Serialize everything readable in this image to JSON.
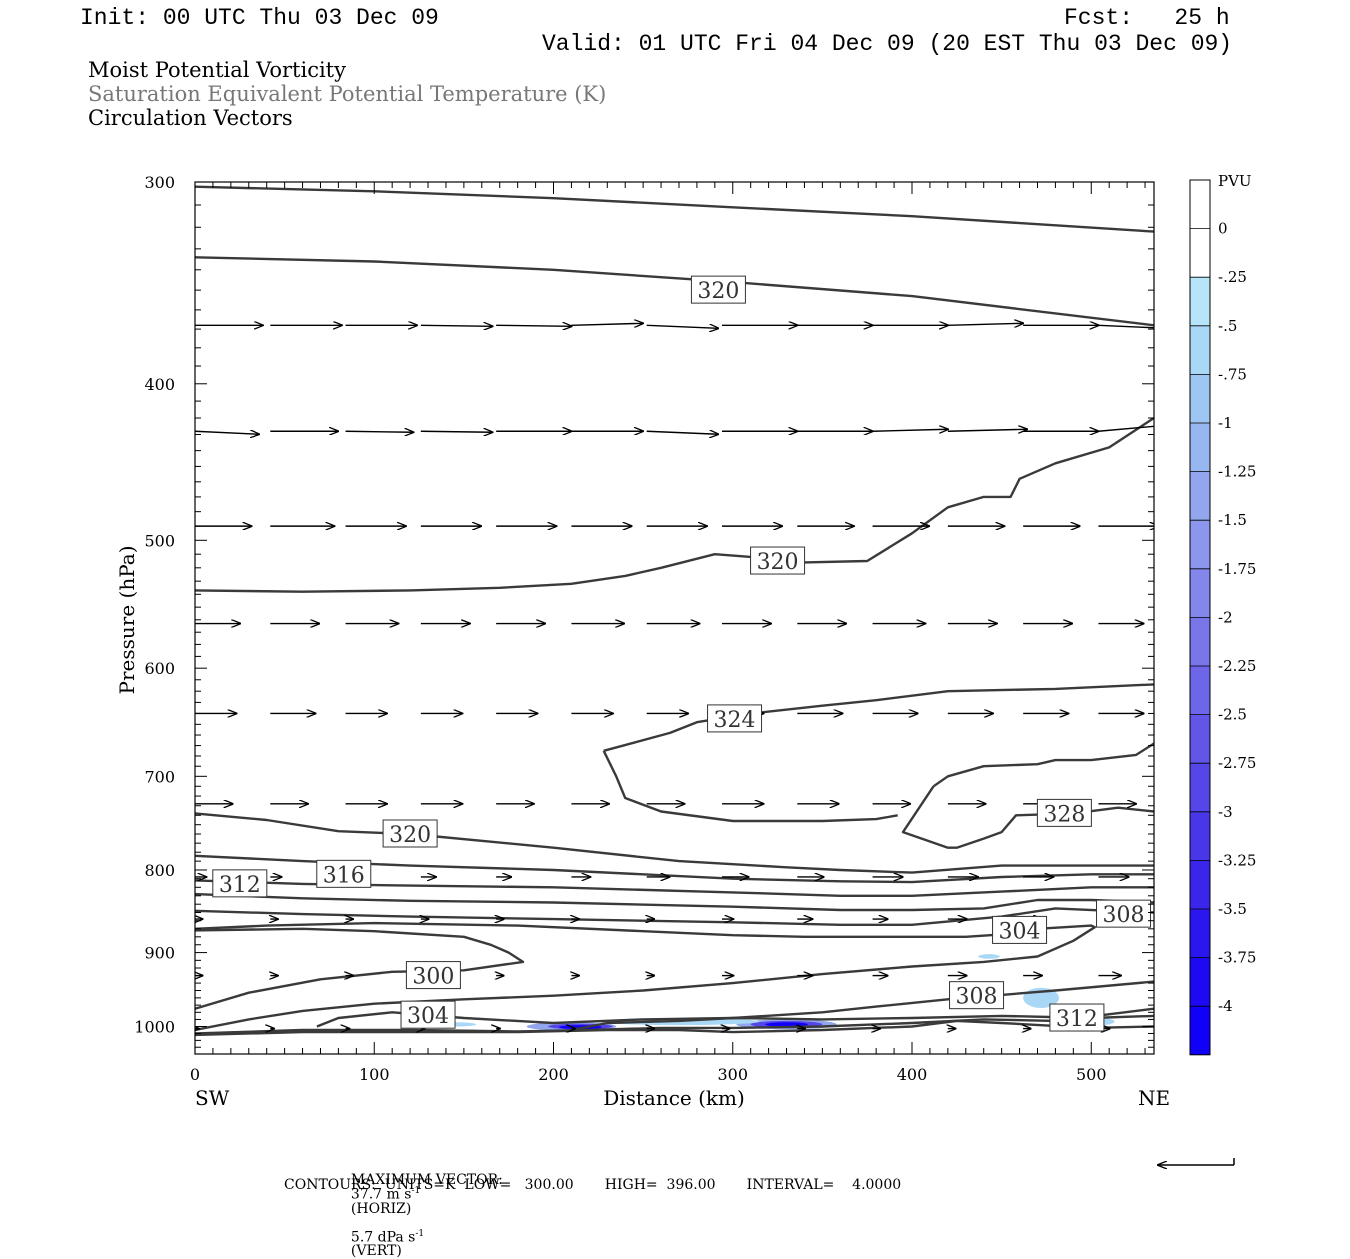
{
  "header": {
    "init": "Init: 00 UTC Thu 03 Dec 09",
    "fcst": "Fcst:   25 h",
    "valid": "Valid: 01 UTC Fri 04 Dec 09 (20 EST Thu 03 Dec 09)"
  },
  "titles": {
    "line1": "Moist Potential Vorticity",
    "line2": "Saturation Equivalent Potential Temperature (K)",
    "line3": "Circulation Vectors"
  },
  "footer": {
    "max_vector_label": "MAXIMUM VECTOR:",
    "horiz_value": "37.7 m s",
    "horiz_exp": "-1",
    "horiz_suffix": "(HORIZ)",
    "vert_value": "5.7 dPa s",
    "vert_exp": "-1",
    "vert_suffix": "(VERT)",
    "contours_line": "CONTOURS:  UNITS=K  LOW=   300.00       HIGH=  396.00       INTERVAL=    4.0000"
  },
  "chart_data": {
    "type": "cross-section",
    "xlabel": "Distance (km)",
    "ylabel": "Pressure (hPa)",
    "xlim": [
      0,
      535
    ],
    "ylim": [
      1040,
      300
    ],
    "y_scale": "log-pressure",
    "x_ticks": [
      "0",
      "100",
      "200",
      "300",
      "400",
      "500"
    ],
    "y_ticks": [
      "300",
      "400",
      "500",
      "600",
      "700",
      "800",
      "900",
      "1000"
    ],
    "endpoint_left": "SW",
    "endpoint_right": "NE",
    "colorbar": {
      "unit": "PVU",
      "labels": [
        "0",
        "-.25",
        "-.5",
        "-.75",
        "-1",
        "-1.25",
        "-1.5",
        "-1.75",
        "-2",
        "-2.25",
        "-2.5",
        "-2.75",
        "-3",
        "-3.25",
        "-3.5",
        "-3.75",
        "-4"
      ],
      "colors": [
        "#ffffff",
        "#ffffff",
        "#b8e4fa",
        "#a9d8f7",
        "#9ec6f3",
        "#98b6f0",
        "#92a6ee",
        "#8b96ec",
        "#8386ea",
        "#7a76e9",
        "#6e66e8",
        "#6256e8",
        "#5546e8",
        "#4836e8",
        "#3a26ea",
        "#2c16ee",
        "#1e0af2",
        "#1000f8"
      ]
    },
    "contour_labels": [
      {
        "text": "320",
        "x": 292,
        "p": 350
      },
      {
        "text": "320",
        "x": 325,
        "p": 515
      },
      {
        "text": "324",
        "x": 301,
        "p": 645
      },
      {
        "text": "328",
        "x": 485,
        "p": 738
      },
      {
        "text": "320",
        "x": 120,
        "p": 760
      },
      {
        "text": "316",
        "x": 83,
        "p": 805
      },
      {
        "text": "312",
        "x": 25,
        "p": 816
      },
      {
        "text": "308",
        "x": 518,
        "p": 852
      },
      {
        "text": "304",
        "x": 460,
        "p": 872
      },
      {
        "text": "300",
        "x": 133,
        "p": 930
      },
      {
        "text": "308",
        "x": 436,
        "p": 957
      },
      {
        "text": "312",
        "x": 492,
        "p": 988
      },
      {
        "text": "304",
        "x": 130,
        "p": 984
      }
    ],
    "contours": [
      {
        "x": [
          0,
          100,
          200,
          300,
          400,
          535
        ],
        "p": [
          302,
          304,
          307,
          311,
          315,
          322
        ]
      },
      {
        "x": [
          0,
          100,
          200,
          300,
          400,
          535
        ],
        "p": [
          334,
          336,
          340,
          346,
          353,
          368
        ]
      },
      {
        "x": [
          0,
          60,
          120,
          170,
          210,
          240,
          260,
          290,
          310,
          340,
          375,
          400,
          420,
          440,
          455,
          460,
          480,
          510,
          535
        ],
        "p": [
          537,
          538,
          537,
          535,
          532,
          526,
          520,
          510,
          512,
          516,
          515,
          495,
          477,
          470,
          470,
          458,
          448,
          438,
          420
        ]
      },
      {
        "x": [
          228,
          265,
          280,
          310,
          350,
          380,
          420,
          480,
          535
        ],
        "p": [
          675,
          658,
          648,
          640,
          633,
          628,
          620,
          618,
          614
        ]
      },
      {
        "x": [
          228,
          235,
          240,
          260,
          300,
          350,
          380,
          392
        ],
        "p": [
          675,
          700,
          722,
          736,
          746,
          746,
          744,
          740
        ]
      },
      {
        "x": [
          412,
          420,
          440,
          470,
          480,
          500,
          525,
          535
        ],
        "p": [
          710,
          700,
          690,
          688,
          684,
          684,
          679,
          668
        ]
      },
      {
        "x": [
          412,
          395,
          420,
          425,
          440,
          450,
          458,
          490,
          515,
          535
        ],
        "p": [
          710,
          758,
          775,
          775,
          765,
          758,
          740,
          738,
          732,
          736
        ]
      },
      {
        "x": [
          0,
          40,
          80,
          120,
          200,
          270,
          330,
          360,
          400,
          450,
          500,
          535
        ],
        "p": [
          738,
          745,
          757,
          760,
          775,
          790,
          797,
          800,
          803,
          795,
          795,
          795
        ]
      },
      {
        "x": [
          0,
          60,
          120,
          200,
          300,
          360,
          400,
          450,
          500,
          535
        ],
        "p": [
          784,
          790,
          795,
          800,
          810,
          813,
          814,
          808,
          805,
          805
        ]
      },
      {
        "x": [
          0,
          60,
          120,
          200,
          300,
          360,
          400,
          450,
          500,
          535
        ],
        "p": [
          812,
          816,
          818,
          820,
          826,
          830,
          830,
          825,
          820,
          820
        ]
      },
      {
        "x": [
          0,
          60,
          120,
          200,
          300,
          360,
          400,
          440,
          470,
          500,
          535
        ],
        "p": [
          828,
          833,
          836,
          838,
          843,
          847,
          847,
          845,
          835,
          835,
          838
        ]
      },
      {
        "x": [
          0,
          60,
          120,
          200,
          300,
          360,
          400,
          450,
          480,
          510,
          535
        ],
        "p": [
          848,
          852,
          855,
          858,
          862,
          865,
          865,
          855,
          845,
          848,
          850
        ]
      },
      {
        "x": [
          0,
          40,
          100,
          180,
          250,
          300,
          340,
          380,
          400,
          430,
          450,
          470,
          500,
          502,
          490,
          470,
          440,
          400,
          350,
          300,
          250,
          200,
          150,
          100,
          60,
          30,
          0
        ],
        "p": [
          870,
          866,
          863,
          866,
          873,
          878,
          880,
          880,
          880,
          880,
          877,
          870,
          866,
          868,
          885,
          905,
          912,
          918,
          928,
          940,
          950,
          957,
          962,
          968,
          978,
          990,
          1005
        ]
      },
      {
        "x": [
          0,
          60,
          100,
          150,
          165,
          175,
          183,
          150,
          110,
          70,
          30,
          0
        ],
        "p": [
          872,
          870,
          873,
          880,
          890,
          900,
          912,
          923,
          925,
          935,
          953,
          975
        ]
      },
      {
        "x": [
          68,
          80,
          110,
          150,
          200,
          250,
          300,
          350,
          400,
          450,
          500,
          535
        ],
        "p": [
          1000,
          988,
          980,
          988,
          995,
          990,
          988,
          990,
          988,
          985,
          988,
          985
        ]
      },
      {
        "x": [
          210,
          230,
          270,
          300,
          350,
          380,
          420,
          480,
          535
        ],
        "p": [
          1005,
          995,
          992,
          988,
          980,
          972,
          962,
          950,
          938
        ]
      },
      {
        "x": [
          0,
          60,
          120,
          180,
          220,
          260,
          300,
          350,
          400,
          440,
          480,
          535
        ],
        "p": [
          1010,
          1005,
          1005,
          1007,
          1005,
          1002,
          1002,
          1000,
          995,
          990,
          992,
          975
        ]
      },
      {
        "x": [
          0,
          60,
          120,
          180,
          230,
          270,
          300,
          350,
          400,
          425,
          450,
          500,
          535
        ],
        "p": [
          1012,
          1008,
          1008,
          1008,
          1005,
          1005,
          1008,
          1005,
          1000,
          992,
          995,
          1002,
          1000
        ]
      }
    ],
    "pv_blobs": [
      {
        "x": 210,
        "p": 1000,
        "rx": 25,
        "rp": 6,
        "level": 4
      },
      {
        "x": 215,
        "p": 1000,
        "rx": 18,
        "rp": 4,
        "level": 10
      },
      {
        "x": 215,
        "p": 1001,
        "rx": 12,
        "rp": 3,
        "level": 15
      },
      {
        "x": 330,
        "p": 997,
        "rx": 28,
        "rp": 7,
        "level": 4
      },
      {
        "x": 330,
        "p": 997,
        "rx": 20,
        "rp": 5,
        "level": 10
      },
      {
        "x": 330,
        "p": 997,
        "rx": 12,
        "rp": 3,
        "level": 15
      },
      {
        "x": 270,
        "p": 993,
        "rx": 45,
        "rp": 5,
        "level": 1
      },
      {
        "x": 145,
        "p": 997,
        "rx": 12,
        "rp": 3,
        "level": 1
      },
      {
        "x": 472,
        "p": 960,
        "rx": 10,
        "rp": 14,
        "level": 1
      },
      {
        "x": 495,
        "p": 993,
        "rx": 18,
        "rp": 7,
        "level": 1
      },
      {
        "x": 443,
        "p": 905,
        "rx": 6,
        "rp": 3,
        "level": 1
      }
    ],
    "vector_rows": [
      {
        "p": 368,
        "x": [
          0,
          42,
          84,
          126,
          168,
          210,
          252,
          294,
          336,
          378,
          420,
          462,
          504
        ],
        "dx": [
          36,
          38,
          38,
          38,
          40,
          38,
          38,
          40,
          40,
          40,
          40,
          40,
          36
        ],
        "dy": [
          0,
          0,
          0,
          1,
          1,
          -2,
          3,
          0,
          0,
          0,
          -2,
          0,
          3
        ]
      },
      {
        "p": 428,
        "x": [
          0,
          42,
          84,
          126,
          168,
          210,
          252,
          294,
          336,
          378,
          420,
          462,
          504
        ],
        "dx": [
          34,
          36,
          36,
          38,
          40,
          38,
          38,
          40,
          40,
          40,
          42,
          40,
          36
        ],
        "dy": [
          3,
          0,
          1,
          1,
          0,
          0,
          3,
          0,
          0,
          -2,
          -2,
          0,
          -6
        ]
      },
      {
        "p": 490,
        "x": [
          0,
          42,
          84,
          126,
          168,
          210,
          252,
          294,
          336,
          378,
          420,
          462,
          504
        ],
        "dx": [
          30,
          34,
          32,
          32,
          32,
          32,
          32,
          32,
          30,
          30,
          30,
          30,
          32
        ]
      },
      {
        "p": 563,
        "x": [
          0,
          42,
          84,
          126,
          168,
          210,
          252,
          294,
          336,
          378,
          420,
          462,
          504
        ],
        "dx": [
          24,
          26,
          28,
          26,
          26,
          28,
          28,
          26,
          26,
          28,
          26,
          26,
          24
        ]
      },
      {
        "p": 640,
        "x": [
          0,
          42,
          84,
          126,
          168,
          210,
          252,
          294,
          336,
          378,
          420,
          462,
          504
        ],
        "dx": [
          22,
          24,
          22,
          22,
          22,
          22,
          22,
          22,
          24,
          24,
          24,
          24,
          24
        ]
      },
      {
        "p": 728,
        "x": [
          0,
          42,
          84,
          126,
          168,
          210,
          252,
          294,
          336,
          378,
          420,
          462,
          504
        ],
        "dx": [
          20,
          20,
          22,
          22,
          20,
          20,
          20,
          22,
          22,
          20,
          20,
          20,
          20
        ]
      },
      {
        "p": 808,
        "x": [
          0,
          42,
          84,
          126,
          168,
          210,
          252,
          294,
          336,
          378,
          420,
          462,
          504
        ],
        "dx": [
          6,
          6,
          8,
          8,
          8,
          10,
          12,
          14,
          14,
          16,
          16,
          16,
          16
        ]
      },
      {
        "p": 858,
        "x": [
          0,
          42,
          84,
          126,
          168,
          210,
          252,
          294,
          336,
          378,
          420,
          462,
          504
        ],
        "dx": [
          4,
          4,
          4,
          4,
          4,
          4,
          4,
          6,
          8,
          8,
          10,
          10,
          12
        ]
      },
      {
        "p": 930,
        "x": [
          0,
          42,
          84,
          126,
          168,
          210,
          252,
          294,
          336,
          378,
          420,
          462,
          504
        ],
        "dx": [
          4,
          4,
          4,
          4,
          4,
          4,
          4,
          6,
          8,
          8,
          10,
          10,
          12
        ]
      },
      {
        "p": 1003,
        "x": [
          0,
          42,
          84,
          126,
          168,
          210,
          252,
          294,
          336,
          378,
          420,
          462,
          504
        ],
        "dx": [
          2,
          2,
          2,
          2,
          2,
          2,
          4,
          4,
          4,
          4,
          4,
          4,
          6
        ]
      }
    ]
  }
}
